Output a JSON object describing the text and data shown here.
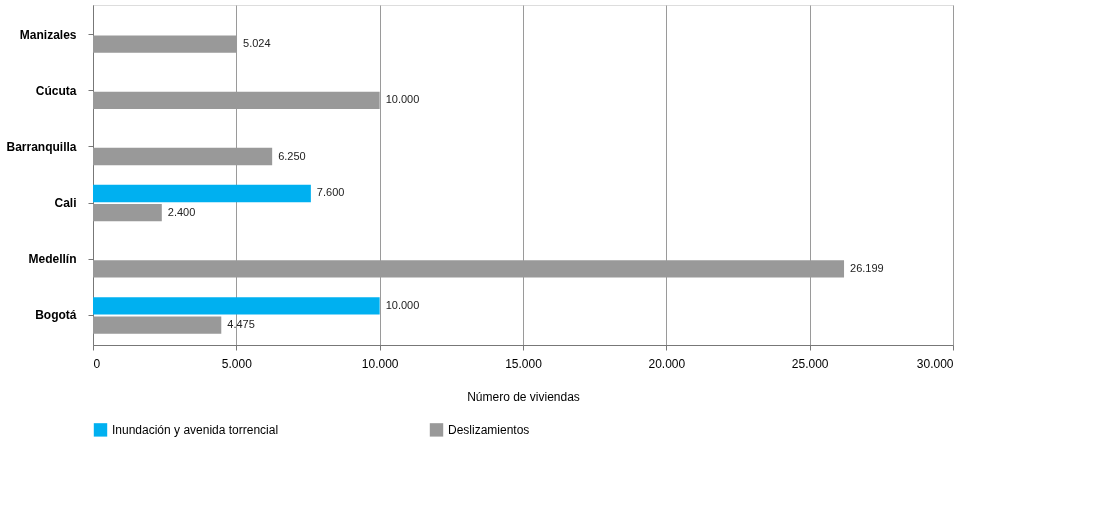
{
  "chart_data": {
    "type": "bar",
    "orientation": "horizontal",
    "xlabel": "Número de viviendas",
    "categories": [
      "Manizales",
      "Cúcuta",
      "Barranquilla",
      "Cali",
      "Medellín",
      "Bogotá"
    ],
    "series": [
      {
        "name": "Inundación y avenida torrencial",
        "color": "#00b0f0",
        "values": [
          null,
          null,
          null,
          7600,
          null,
          10000
        ],
        "value_labels": [
          null,
          null,
          null,
          "7.600",
          null,
          "10.000"
        ]
      },
      {
        "name": "Deslizamientos",
        "color": "#999999",
        "values": [
          5024,
          10000,
          6250,
          2400,
          26199,
          4475
        ],
        "value_labels": [
          "5.024",
          "10.000",
          "6.250",
          "2.400",
          "26.199",
          "4.475"
        ]
      }
    ],
    "xlim": [
      0,
      30000
    ],
    "xticks": [
      {
        "value": 0,
        "label": "0"
      },
      {
        "value": 5000,
        "label": "5.000"
      },
      {
        "value": 10000,
        "label": "10.000"
      },
      {
        "value": 15000,
        "label": "15.000"
      },
      {
        "value": 20000,
        "label": "20.000"
      },
      {
        "value": 25000,
        "label": "25.000"
      },
      {
        "value": 30000,
        "label": "30.000"
      }
    ],
    "grid": "x",
    "legend": "bottom"
  }
}
